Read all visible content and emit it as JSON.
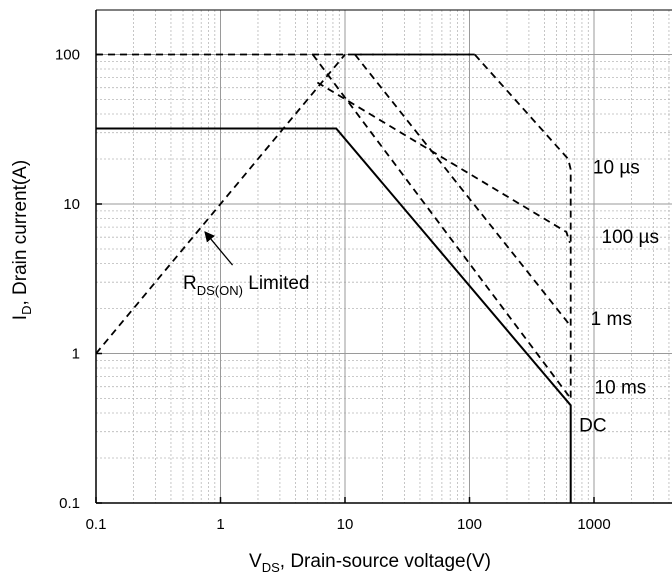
{
  "chart_data": {
    "type": "line",
    "xscale": "log",
    "yscale": "log",
    "xlim": [
      0.1,
      5000
    ],
    "ylim": [
      0.1,
      200
    ],
    "grid": true,
    "xticks": [
      {
        "value": 0.1,
        "label": "0.1"
      },
      {
        "value": 1,
        "label": "1"
      },
      {
        "value": 10,
        "label": "10"
      },
      {
        "value": 100,
        "label": "100"
      },
      {
        "value": 1000,
        "label": "1000"
      }
    ],
    "yticks": [
      {
        "value": 0.1,
        "label": "0.1"
      },
      {
        "value": 1,
        "label": "1"
      },
      {
        "value": 10,
        "label": "10"
      },
      {
        "value": 100,
        "label": "100"
      }
    ],
    "xlabel": {
      "main": "V",
      "sub": "DS",
      "rest": ", Drain-source voltage(V)"
    },
    "ylabel": {
      "main": "I",
      "sub": "D",
      "rest": ", Drain current(A)"
    },
    "series": [
      {
        "name": "10 µs",
        "style": "dashed",
        "x": [
          12,
          110,
          620,
          650,
          650
        ],
        "y": [
          100,
          100,
          20,
          17,
          0.5
        ]
      },
      {
        "name": "100 µs",
        "style": "dashed",
        "x": [
          6,
          600,
          640
        ],
        "y": [
          65,
          6.5,
          5.5
        ]
      },
      {
        "name": "1 ms",
        "style": "dashed",
        "x": [
          12,
          620
        ],
        "y": [
          100,
          1.6
        ]
      },
      {
        "name": "10 ms",
        "style": "dashed",
        "x": [
          5.5,
          650
        ],
        "y": [
          100,
          0.5
        ]
      },
      {
        "name": "DC",
        "style": "solid",
        "x": [
          0.1,
          8.5,
          650,
          650
        ],
        "y": [
          32,
          32,
          0.45,
          0.1
        ]
      },
      {
        "name": "RDS(ON) Limited",
        "style": "dashed",
        "x": [
          0.1,
          10
        ],
        "y": [
          1,
          100
        ]
      },
      {
        "name": "",
        "style": "dashed",
        "x": [
          0.1,
          110
        ],
        "y": [
          100,
          100
        ]
      }
    ],
    "annotations": [
      {
        "text": "10 µs",
        "x": 980,
        "y": 16
      },
      {
        "text": "100 µs",
        "x": 1150,
        "y": 5.5
      },
      {
        "text": "1 ms",
        "x": 940,
        "y": 1.55
      },
      {
        "text": "10 ms",
        "x": 1010,
        "y": 0.54
      },
      {
        "text": "DC",
        "x": 760,
        "y": 0.3
      },
      {
        "text": "R",
        "sub": "DS(ON)",
        "rest": " Limited",
        "x": 0.5,
        "y": 2.7,
        "arrow_from": [
          1.25,
          3.9
        ],
        "arrow_to": [
          0.75,
          6.5
        ]
      }
    ]
  }
}
